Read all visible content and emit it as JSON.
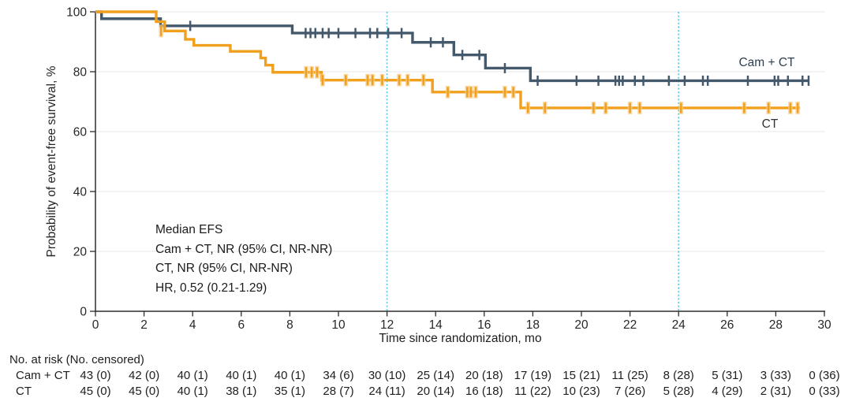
{
  "chart_data": {
    "type": "line",
    "subtype": "kaplan-meier-step",
    "title": "",
    "xlabel": "Time since randomization, mo",
    "ylabel": "Probability of event-free survival, %",
    "xlim": [
      0,
      30
    ],
    "ylim": [
      0,
      100
    ],
    "xticks": [
      0,
      2,
      4,
      6,
      8,
      10,
      12,
      14,
      16,
      18,
      20,
      22,
      24,
      26,
      28,
      30
    ],
    "yticks": [
      0,
      20,
      40,
      60,
      80,
      100
    ],
    "grid": "horizontal",
    "legend_position": "end-of-line-labels",
    "reference_lines_x": [
      12,
      24
    ],
    "colors": {
      "grid": "#ececec",
      "axis": "#2d2d2d",
      "reference": "#55c3e8",
      "cam_ct": "#44596b",
      "ct": "#f0a01c",
      "ct_censor_halo": "#f8cd8a"
    },
    "annotation": {
      "lines": [
        "Median EFS",
        "Cam + CT, NR (95% CI, NR-NR)",
        "CT, NR (95% CI, NR-NR)",
        "HR, 0.52 (0.21-1.29)"
      ]
    },
    "series": [
      {
        "name": "Cam + CT",
        "color": "#44596b",
        "steps": [
          [
            0,
            100
          ],
          [
            0.25,
            97.7
          ],
          [
            2.68,
            95.3
          ],
          [
            8.1,
            92.9
          ],
          [
            13.05,
            89.8
          ],
          [
            14.75,
            85.6
          ],
          [
            16.05,
            81.2
          ],
          [
            17.9,
            77.0
          ],
          [
            29.35,
            77.0
          ]
        ],
        "censor_marks": [
          [
            3.9,
            95.3
          ],
          [
            8.65,
            92.9
          ],
          [
            8.85,
            92.9
          ],
          [
            9.05,
            92.9
          ],
          [
            9.35,
            92.9
          ],
          [
            9.6,
            92.9
          ],
          [
            10.0,
            92.9
          ],
          [
            10.7,
            92.9
          ],
          [
            11.3,
            92.9
          ],
          [
            11.6,
            92.9
          ],
          [
            12.05,
            92.9
          ],
          [
            12.6,
            92.9
          ],
          [
            13.8,
            89.8
          ],
          [
            14.3,
            89.8
          ],
          [
            15.1,
            85.6
          ],
          [
            15.8,
            85.6
          ],
          [
            16.85,
            81.2
          ],
          [
            18.2,
            77.0
          ],
          [
            19.8,
            77.0
          ],
          [
            20.7,
            77.0
          ],
          [
            21.4,
            77.0
          ],
          [
            21.55,
            77.0
          ],
          [
            21.7,
            77.0
          ],
          [
            22.2,
            77.0
          ],
          [
            22.55,
            77.0
          ],
          [
            23.6,
            77.0
          ],
          [
            24.25,
            77.0
          ],
          [
            25.0,
            77.0
          ],
          [
            25.2,
            77.0
          ],
          [
            26.85,
            77.0
          ],
          [
            27.95,
            77.0
          ],
          [
            28.1,
            77.0
          ],
          [
            28.5,
            77.0
          ],
          [
            29.1,
            77.0
          ],
          [
            29.35,
            77.0
          ]
        ]
      },
      {
        "name": "CT",
        "color": "#f0a01c",
        "censor_halo": "#f8cd8a",
        "steps": [
          [
            0,
            100
          ],
          [
            2.5,
            96.7
          ],
          [
            2.85,
            93.6
          ],
          [
            3.7,
            90.8
          ],
          [
            4.05,
            88.8
          ],
          [
            5.55,
            86.8
          ],
          [
            6.8,
            84.6
          ],
          [
            7.0,
            82.2
          ],
          [
            7.3,
            79.8
          ],
          [
            9.3,
            77.2
          ],
          [
            13.87,
            73.2
          ],
          [
            17.5,
            67.9
          ],
          [
            29.0,
            67.9
          ]
        ],
        "censor_marks": [
          [
            2.7,
            93.6
          ],
          [
            8.67,
            79.8
          ],
          [
            8.9,
            79.8
          ],
          [
            9.12,
            79.8
          ],
          [
            9.35,
            77.2
          ],
          [
            10.3,
            77.2
          ],
          [
            11.2,
            77.2
          ],
          [
            11.4,
            77.2
          ],
          [
            11.8,
            77.2
          ],
          [
            12.5,
            77.2
          ],
          [
            12.85,
            77.2
          ],
          [
            13.5,
            77.2
          ],
          [
            14.5,
            73.2
          ],
          [
            15.3,
            73.2
          ],
          [
            15.45,
            73.2
          ],
          [
            15.65,
            73.2
          ],
          [
            16.85,
            73.2
          ],
          [
            17.2,
            73.2
          ],
          [
            17.8,
            67.9
          ],
          [
            18.5,
            67.9
          ],
          [
            20.5,
            67.9
          ],
          [
            21.0,
            67.9
          ],
          [
            22.0,
            67.9
          ],
          [
            22.4,
            67.9
          ],
          [
            24.1,
            67.9
          ],
          [
            26.7,
            67.9
          ],
          [
            27.7,
            67.9
          ],
          [
            28.6,
            67.9
          ],
          [
            28.9,
            67.9
          ]
        ]
      }
    ]
  },
  "risk_table": {
    "header": "No. at risk (No. censored)",
    "time_points": [
      0,
      2,
      4,
      6,
      8,
      10,
      12,
      14,
      16,
      18,
      20,
      22,
      24,
      26,
      28,
      30
    ],
    "rows": [
      {
        "label": "Cam + CT",
        "values": [
          "43 (0)",
          "42 (0)",
          "40 (1)",
          "40 (1)",
          "40 (1)",
          "34 (6)",
          "30 (10)",
          "25 (14)",
          "20 (18)",
          "17 (19)",
          "15 (21)",
          "11 (25)",
          "8 (28)",
          "5 (31)",
          "3 (33)",
          "0 (36)"
        ]
      },
      {
        "label": "CT",
        "values": [
          "45 (0)",
          "45 (0)",
          "40 (1)",
          "38 (1)",
          "35 (1)",
          "28 (7)",
          "24 (11)",
          "20 (14)",
          "16 (18)",
          "11 (22)",
          "10 (23)",
          "7 (26)",
          "5 (28)",
          "4 (29)",
          "2 (31)",
          "0 (33)"
        ]
      }
    ]
  }
}
